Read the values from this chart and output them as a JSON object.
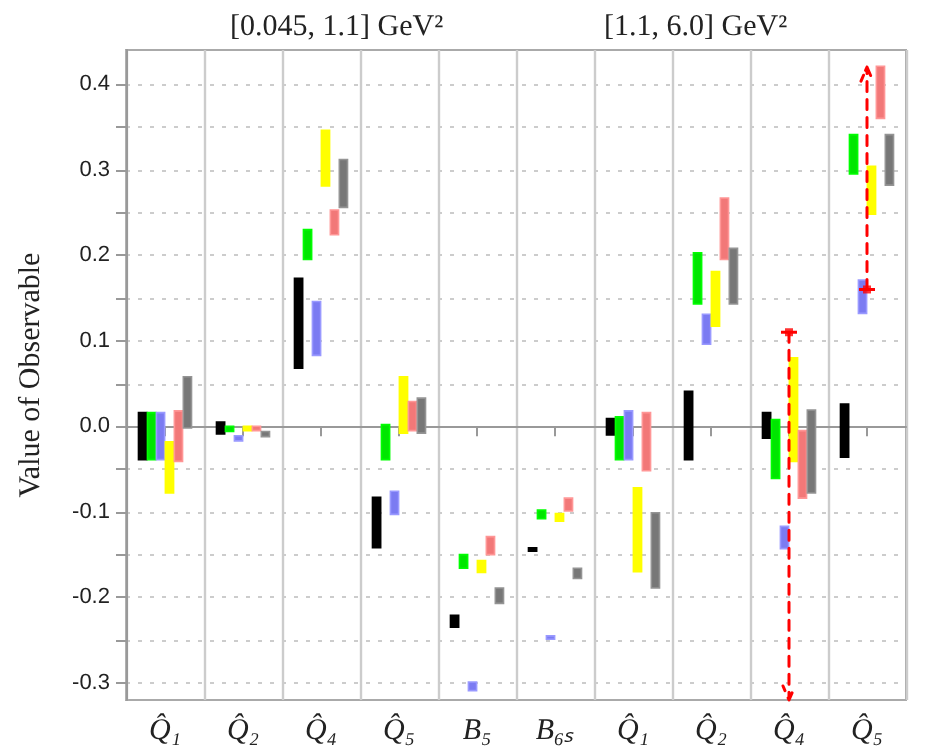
{
  "chart_data": {
    "type": "bar",
    "ylabel": "Value of Observable",
    "annotations": [
      "[0.045, 1.1] GeV²",
      "[1.1, 6.0] GeV²"
    ],
    "categories": [
      "Q̂₁",
      "Q̂₂",
      "Q̂₄",
      "Q̂₅",
      "B₅",
      "B₆ₛ",
      "Q̂₁",
      "Q̂₂",
      "Q̂₄",
      "Q̂₅"
    ],
    "ylim": [
      -0.32,
      0.44
    ],
    "yticks": [
      {
        "value": -0.3,
        "label": "-0.3"
      },
      {
        "value": -0.25,
        "label": null
      },
      {
        "value": -0.2,
        "label": "-0.2"
      },
      {
        "value": -0.15,
        "label": null
      },
      {
        "value": -0.1,
        "label": "-0.1"
      },
      {
        "value": -0.05,
        "label": null
      },
      {
        "value": 0,
        "label": "0.0"
      },
      {
        "value": 0.05,
        "label": null
      },
      {
        "value": 0.1,
        "label": "0.1"
      },
      {
        "value": 0.15,
        "label": null
      },
      {
        "value": 0.2,
        "label": "0.2"
      },
      {
        "value": 0.25,
        "label": null
      },
      {
        "value": 0.3,
        "label": "0.3"
      },
      {
        "value": 0.35,
        "label": null
      },
      {
        "value": 0.4,
        "label": "0.4"
      }
    ],
    "grid": true,
    "series": [
      {
        "color": "#000000",
        "base": [
          -0.039,
          -0.009,
          0.068,
          -0.142,
          -0.235,
          -0.146,
          -0.01,
          -0.039,
          -0.014,
          -0.036
        ],
        "values": [
          0.055,
          0.014,
          0.105,
          0.059,
          0.014,
          0.004,
          0.019,
          0.08,
          0.03,
          0.062
        ]
      },
      {
        "color": "#00e600",
        "base": [
          -0.039,
          -0.006,
          0.195,
          -0.039,
          -0.166,
          -0.108,
          -0.039,
          0.143,
          -0.061,
          0.295
        ],
        "values": [
          0.055,
          0.006,
          0.035,
          0.041,
          0.016,
          0.01,
          0.05,
          0.06,
          0.069,
          0.046
        ]
      },
      {
        "color": "#7b7bf2",
        "base": [
          -0.039,
          -0.017,
          0.083,
          -0.103,
          -0.309,
          -0.249,
          -0.039,
          0.096,
          -0.143,
          0.132
        ],
        "values": [
          0.055,
          0.006,
          0.063,
          0.027,
          0.01,
          0.004,
          0.057,
          0.035,
          0.026,
          0.039
        ]
      },
      {
        "color": "#ffff00",
        "base": [
          -0.078,
          -0.005,
          0.281,
          -0.008,
          -0.171,
          -0.111,
          -0.17,
          0.117,
          -0.041,
          0.248
        ],
        "values": [
          0.06,
          0.005,
          0.065,
          0.066,
          0.014,
          0.009,
          0.098,
          0.064,
          0.121,
          0.056
        ]
      },
      {
        "color": "#f27878",
        "base": [
          -0.041,
          -0.005,
          0.224,
          -0.005,
          -0.15,
          -0.099,
          -0.052,
          0.195,
          -0.084,
          0.36
        ],
        "values": [
          0.059,
          0.005,
          0.029,
          0.034,
          0.021,
          0.015,
          0.068,
          0.072,
          0.079,
          0.061
        ]
      },
      {
        "color": "#777777",
        "base": [
          -0.002,
          -0.012,
          0.256,
          -0.008,
          -0.207,
          -0.178,
          -0.189,
          0.143,
          -0.078,
          0.282
        ],
        "values": [
          0.06,
          0.006,
          0.056,
          0.041,
          0.018,
          0.012,
          0.088,
          0.065,
          0.097,
          0.059
        ]
      },
      {
        "type": "scatter",
        "color": "#ff0000",
        "line_style": "dashed",
        "marker": "square",
        "values": [
          null,
          null,
          null,
          null,
          null,
          null,
          null,
          null,
          0.11,
          0.16
        ],
        "errors": [
          null,
          null,
          null,
          null,
          null,
          null,
          null,
          null,
          [
            -0.32,
            0.11
          ],
          [
            0.16,
            0.42
          ]
        ]
      }
    ]
  }
}
